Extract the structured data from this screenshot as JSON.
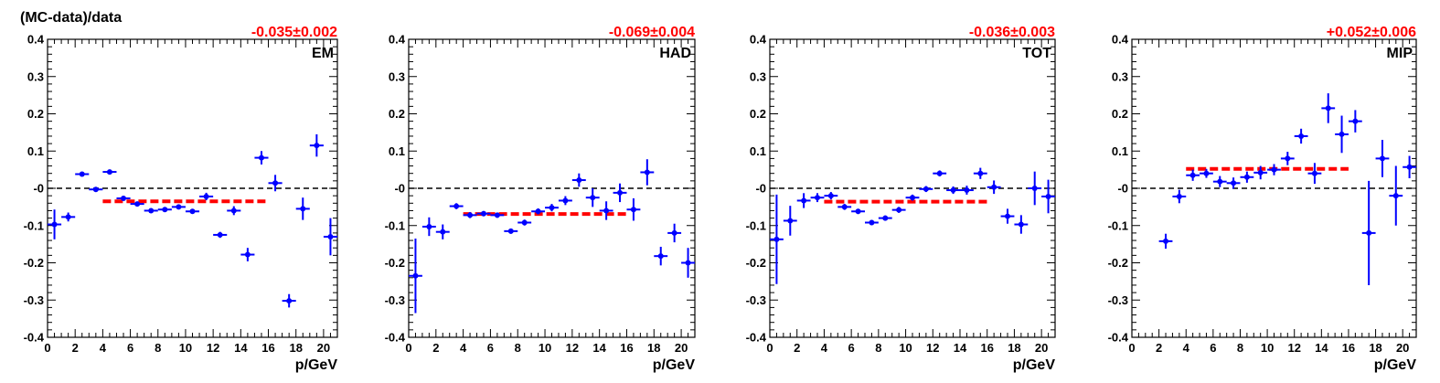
{
  "figure": {
    "ylabel": "(MC-data)/data"
  },
  "chart_data": [
    {
      "type": "scatter",
      "panel_label": "EM",
      "fit_text": "-0.035±0.002",
      "fit_value": -0.035,
      "fit_xrange": [
        4,
        16
      ],
      "xlabel": "p/GeV",
      "xlim": [
        0,
        21
      ],
      "ylim": [
        -0.4,
        0.4
      ],
      "xticks": [
        "0",
        "2",
        "4",
        "6",
        "8",
        "10",
        "12",
        "14",
        "16",
        "18",
        "20"
      ],
      "yticks": [
        "-0.4",
        "-0.3",
        "-0.2",
        "-0.1",
        "-0",
        "0.1",
        "0.2",
        "0.3",
        "0.4"
      ],
      "series": [
        {
          "x": [
            0.5,
            1.5,
            2.5,
            3.5,
            4.5,
            5.5,
            6.5,
            7.5,
            8.5,
            9.5,
            10.5,
            11.5,
            12.5,
            13.5,
            14.5,
            15.5,
            16.5,
            17.5,
            18.5,
            19.5,
            20.5
          ],
          "y": [
            -0.097,
            -0.077,
            0.038,
            -0.003,
            0.044,
            -0.027,
            -0.042,
            -0.06,
            -0.057,
            -0.05,
            -0.062,
            -0.022,
            -0.125,
            -0.06,
            -0.178,
            0.082,
            0.014,
            -0.302,
            -0.055,
            0.115,
            -0.13
          ],
          "yerr": [
            0.04,
            0.012,
            0.006,
            0.005,
            0.005,
            0.005,
            0.006,
            0.006,
            0.006,
            0.006,
            0.006,
            0.01,
            0.008,
            0.012,
            0.018,
            0.018,
            0.022,
            0.018,
            0.03,
            0.03,
            0.05
          ]
        }
      ]
    },
    {
      "type": "scatter",
      "panel_label": "HAD",
      "fit_text": "-0.069±0.004",
      "fit_value": -0.069,
      "fit_xrange": [
        4,
        16
      ],
      "xlabel": "p/GeV",
      "xlim": [
        0,
        21
      ],
      "ylim": [
        -0.4,
        0.4
      ],
      "xticks": [
        "0",
        "2",
        "4",
        "6",
        "8",
        "10",
        "12",
        "14",
        "16",
        "18",
        "20"
      ],
      "yticks": [
        "-0.4",
        "-0.3",
        "-0.2",
        "-0.1",
        "-0",
        "0.1",
        "0.2",
        "0.3",
        "0.4"
      ],
      "series": [
        {
          "x": [
            0.5,
            1.5,
            2.5,
            3.5,
            4.5,
            5.5,
            6.5,
            7.5,
            8.5,
            9.5,
            10.5,
            11.5,
            12.5,
            13.5,
            14.5,
            15.5,
            16.5,
            17.5,
            18.5,
            19.5,
            20.5
          ],
          "y": [
            -0.235,
            -0.103,
            -0.117,
            -0.048,
            -0.072,
            -0.068,
            -0.072,
            -0.115,
            -0.092,
            -0.062,
            -0.052,
            -0.033,
            0.022,
            -0.025,
            -0.06,
            -0.012,
            -0.057,
            0.043,
            -0.182,
            -0.12,
            -0.2
          ],
          "yerr": [
            0.1,
            0.025,
            0.02,
            0.008,
            0.008,
            0.007,
            0.007,
            0.007,
            0.008,
            0.008,
            0.01,
            0.012,
            0.018,
            0.025,
            0.025,
            0.025,
            0.03,
            0.035,
            0.025,
            0.025,
            0.04
          ]
        }
      ]
    },
    {
      "type": "scatter",
      "panel_label": "TOT",
      "fit_text": "-0.036±0.003",
      "fit_value": -0.036,
      "fit_xrange": [
        4,
        16
      ],
      "xlabel": "p/GeV",
      "xlim": [
        0,
        21
      ],
      "ylim": [
        -0.4,
        0.4
      ],
      "xticks": [
        "0",
        "2",
        "4",
        "6",
        "8",
        "10",
        "12",
        "14",
        "16",
        "18",
        "20"
      ],
      "yticks": [
        "-0.4",
        "-0.3",
        "-0.2",
        "-0.1",
        "-0",
        "0.1",
        "0.2",
        "0.3",
        "0.4"
      ],
      "series": [
        {
          "x": [
            0.5,
            1.5,
            2.5,
            3.5,
            4.5,
            5.5,
            6.5,
            7.5,
            8.5,
            9.5,
            10.5,
            11.5,
            12.5,
            13.5,
            14.5,
            15.5,
            16.5,
            17.5,
            18.5,
            19.5,
            20.5
          ],
          "y": [
            -0.137,
            -0.087,
            -0.033,
            -0.025,
            -0.02,
            -0.05,
            -0.062,
            -0.092,
            -0.08,
            -0.058,
            -0.025,
            -0.002,
            0.04,
            -0.005,
            -0.005,
            0.04,
            0.003,
            -0.075,
            -0.097,
            0.0,
            -0.022
          ],
          "yerr": [
            0.12,
            0.04,
            0.02,
            0.012,
            0.01,
            0.008,
            0.007,
            0.007,
            0.007,
            0.008,
            0.008,
            0.008,
            0.008,
            0.01,
            0.012,
            0.015,
            0.018,
            0.02,
            0.025,
            0.045,
            0.045
          ]
        }
      ]
    },
    {
      "type": "scatter",
      "panel_label": "MIP",
      "fit_text": "+0.052±0.006",
      "fit_value": 0.052,
      "fit_xrange": [
        4,
        16
      ],
      "xlabel": "p/GeV",
      "xlim": [
        0,
        21
      ],
      "ylim": [
        -0.4,
        0.4
      ],
      "xticks": [
        "0",
        "2",
        "4",
        "6",
        "8",
        "10",
        "12",
        "14",
        "16",
        "18",
        "20"
      ],
      "yticks": [
        "-0.4",
        "-0.3",
        "-0.2",
        "-0.1",
        "-0",
        "0.1",
        "0.2",
        "0.3",
        "0.4"
      ],
      "series": [
        {
          "x": [
            2.5,
            3.5,
            4.5,
            5.5,
            6.5,
            7.5,
            8.5,
            9.5,
            10.5,
            11.5,
            12.5,
            13.5,
            14.5,
            15.5,
            16.5,
            17.5,
            18.5,
            19.5,
            20.5
          ],
          "y": [
            -0.142,
            -0.022,
            0.035,
            0.04,
            0.018,
            0.014,
            0.03,
            0.042,
            0.05,
            0.08,
            0.14,
            0.04,
            0.215,
            0.145,
            0.18,
            -0.12,
            0.08,
            -0.02,
            0.057
          ],
          "yerr": [
            0.02,
            0.018,
            0.015,
            0.012,
            0.015,
            0.015,
            0.015,
            0.018,
            0.015,
            0.018,
            0.02,
            0.028,
            0.04,
            0.05,
            0.03,
            0.14,
            0.05,
            0.08,
            0.03
          ]
        }
      ]
    }
  ],
  "colors": {
    "points": "#0000ff",
    "fit": "#ff0000",
    "fit_text": "#ff0000",
    "zero_line": "#000000"
  }
}
